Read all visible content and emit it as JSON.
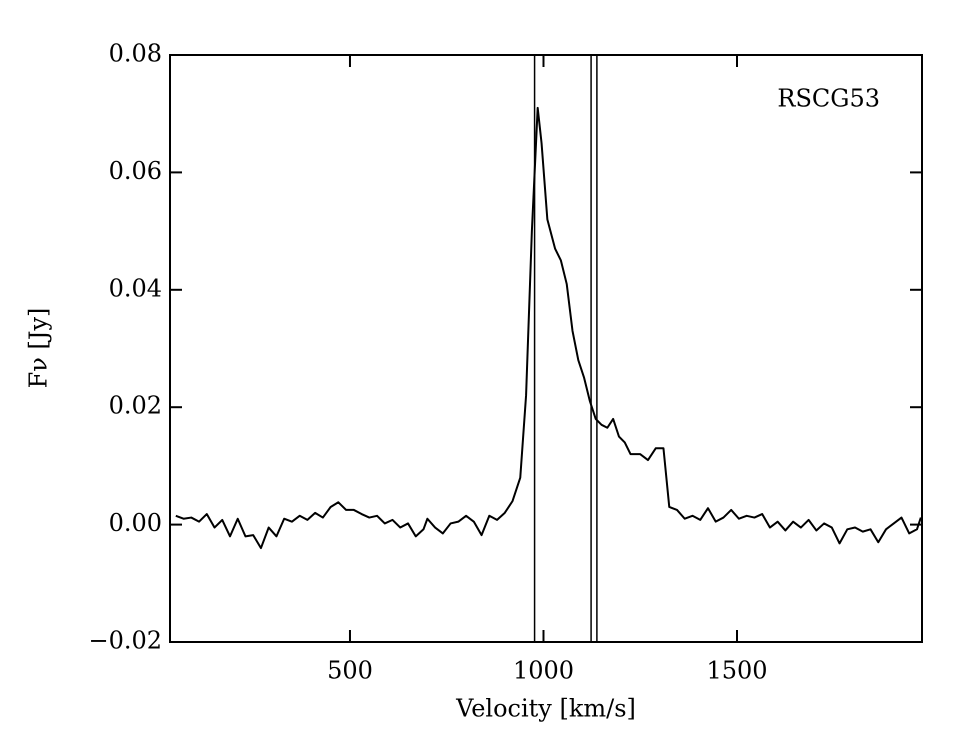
{
  "chart_data": {
    "type": "line",
    "x_label": "Velocity [km/s]",
    "y_label": "Fν [Jy]",
    "annotation": "RSCG53",
    "x": [
      50,
      70,
      90,
      110,
      130,
      150,
      170,
      190,
      210,
      230,
      250,
      270,
      290,
      310,
      330,
      350,
      370,
      390,
      410,
      430,
      450,
      470,
      490,
      510,
      530,
      550,
      570,
      590,
      610,
      630,
      650,
      670,
      690,
      700,
      720,
      740,
      760,
      780,
      800,
      820,
      840,
      860,
      880,
      900,
      920,
      940,
      955,
      970,
      985,
      995,
      1010,
      1030,
      1045,
      1060,
      1075,
      1090,
      1105,
      1120,
      1135,
      1150,
      1165,
      1180,
      1195,
      1210,
      1225,
      1250,
      1270,
      1290,
      1310,
      1325,
      1345,
      1365,
      1385,
      1405,
      1425,
      1445,
      1465,
      1485,
      1505,
      1525,
      1545,
      1565,
      1585,
      1605,
      1625,
      1645,
      1665,
      1685,
      1705,
      1725,
      1745,
      1765,
      1785,
      1805,
      1825,
      1845,
      1865,
      1885,
      1905,
      1925,
      1945,
      1965,
      1975
    ],
    "series": [
      {
        "color": "#000000",
        "values": [
          0.0015,
          0.001,
          0.0012,
          0.0005,
          0.0018,
          -0.0005,
          0.0008,
          -0.002,
          0.001,
          -0.002,
          -0.0018,
          -0.004,
          -0.0005,
          -0.002,
          0.001,
          0.0005,
          0.0015,
          0.0008,
          0.002,
          0.0012,
          0.003,
          0.0038,
          0.0025,
          0.0025,
          0.0018,
          0.0012,
          0.0015,
          0.0002,
          0.0008,
          -0.0005,
          0.0002,
          -0.002,
          -0.0008,
          0.001,
          -0.0005,
          -0.0015,
          0.0002,
          0.0005,
          0.0015,
          0.0005,
          -0.0018,
          0.0015,
          0.0008,
          0.002,
          0.004,
          0.008,
          0.022,
          0.05,
          0.071,
          0.065,
          0.052,
          0.047,
          0.045,
          0.041,
          0.033,
          0.028,
          0.025,
          0.021,
          0.018,
          0.017,
          0.0165,
          0.018,
          0.015,
          0.014,
          0.012,
          0.012,
          0.011,
          0.013,
          0.013,
          0.003,
          0.0025,
          0.001,
          0.0015,
          0.0008,
          0.0028,
          0.0005,
          0.0012,
          0.0025,
          0.001,
          0.0015,
          0.0012,
          0.0018,
          -0.0005,
          0.0005,
          -0.001,
          0.0005,
          -0.0005,
          0.0008,
          -0.001,
          0.0002,
          -0.0005,
          -0.0032,
          -0.0008,
          -0.0005,
          -0.0012,
          -0.0008,
          -0.003,
          -0.0008,
          0.0002,
          0.0012,
          -0.0015,
          -0.0008,
          0.0012
        ]
      }
    ],
    "vlines": [
      977,
      1123,
      1138
    ],
    "xlim": [
      35,
      1978
    ],
    "ylim": [
      -0.02,
      0.08
    ],
    "xticks": [
      500,
      1000,
      1500
    ],
    "yticks": [
      {
        "value": -0.02,
        "label": "−0.02"
      },
      {
        "value": 0,
        "label": "0.00"
      },
      {
        "value": 0.02,
        "label": "0.02"
      },
      {
        "value": 0.04,
        "label": "0.04"
      },
      {
        "value": 0.06,
        "label": "0.06"
      },
      {
        "value": 0.08,
        "label": "0.08"
      }
    ]
  }
}
